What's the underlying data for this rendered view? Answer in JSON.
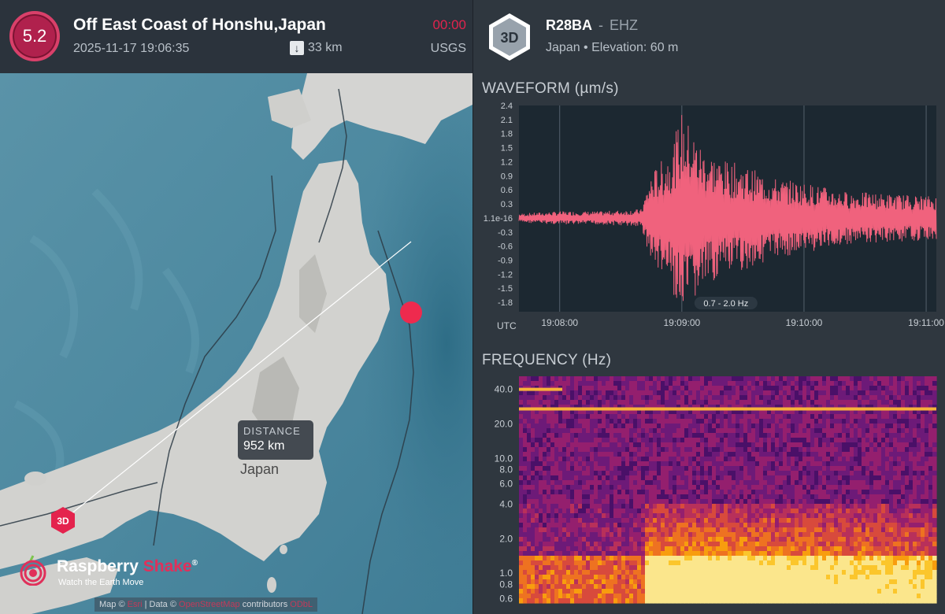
{
  "earthquake": {
    "magnitude": "5.2",
    "title": "Off East Coast of Honshu,Japan",
    "datetime": "2025-11-17 19:06:35",
    "depth": "33 km",
    "countdown": "00:00",
    "source": "USGS"
  },
  "map": {
    "distance_label": "DISTANCE",
    "distance_value": "952 km",
    "country_label": "Japan",
    "station_marker_label": "3D",
    "brand_name_1": "Raspberry",
    "brand_name_2": "Shake",
    "brand_reg": "®",
    "brand_tagline": "Watch the Earth Move",
    "attribution": {
      "map_prefix": "Map ©",
      "map_link": "Esri",
      "data_prefix": "| Data ©",
      "data_link": "OpenStreetMap",
      "data_suffix": "contributors",
      "license_link": "ODbL"
    }
  },
  "station": {
    "badge": "3D",
    "code": "R28BA",
    "separator": "-",
    "channel": "EHZ",
    "subtitle": "Japan • Elevation: 60 m"
  },
  "waveform": {
    "title": "WAVEFORM (µm/s)",
    "band_label": "0.7 - 2.0 Hz",
    "utc_label": "UTC",
    "y_ticks": [
      "2.4",
      "2.1",
      "1.8",
      "1.5",
      "1.2",
      "0.9",
      "0.6",
      "0.3",
      "1.1e-16",
      "-0.3",
      "-0.6",
      "-0.9",
      "-1.2",
      "-1.5",
      "-1.8"
    ],
    "time_ticks": [
      "19:08:00",
      "19:09:00",
      "19:10:00",
      "19:11:00"
    ],
    "line_color": "#f0627d"
  },
  "frequency": {
    "title": "FREQUENCY (Hz)",
    "y_ticks": [
      "40.0",
      "20.0",
      "10.0",
      "8.0",
      "6.0",
      "4.0",
      "2.0",
      "1.0",
      "0.8",
      "0.6"
    ]
  },
  "chart_data": {
    "type": "line",
    "title": "WAVEFORM (µm/s)",
    "xlabel": "UTC",
    "ylabel": "µm/s",
    "ylim": [
      -2.0,
      2.4
    ],
    "x_ticks": [
      "19:08:00",
      "19:09:00",
      "19:10:00",
      "19:11:00"
    ],
    "annotation": "0.7 - 2.0 Hz",
    "series": [
      {
        "x": [
          "19:07:40",
          "19:08:00",
          "19:08:20",
          "19:08:40",
          "19:08:45",
          "19:08:55",
          "19:09:00",
          "19:09:10",
          "19:09:20",
          "19:09:30",
          "19:09:45",
          "19:10:00",
          "19:10:20",
          "19:10:40",
          "19:11:00",
          "19:11:05"
        ],
        "y": [
          0.1,
          0.15,
          0.15,
          0.2,
          1.0,
          1.6,
          2.4,
          1.6,
          1.3,
          1.2,
          0.9,
          0.8,
          0.6,
          0.55,
          0.5,
          0.5
        ]
      }
    ]
  }
}
